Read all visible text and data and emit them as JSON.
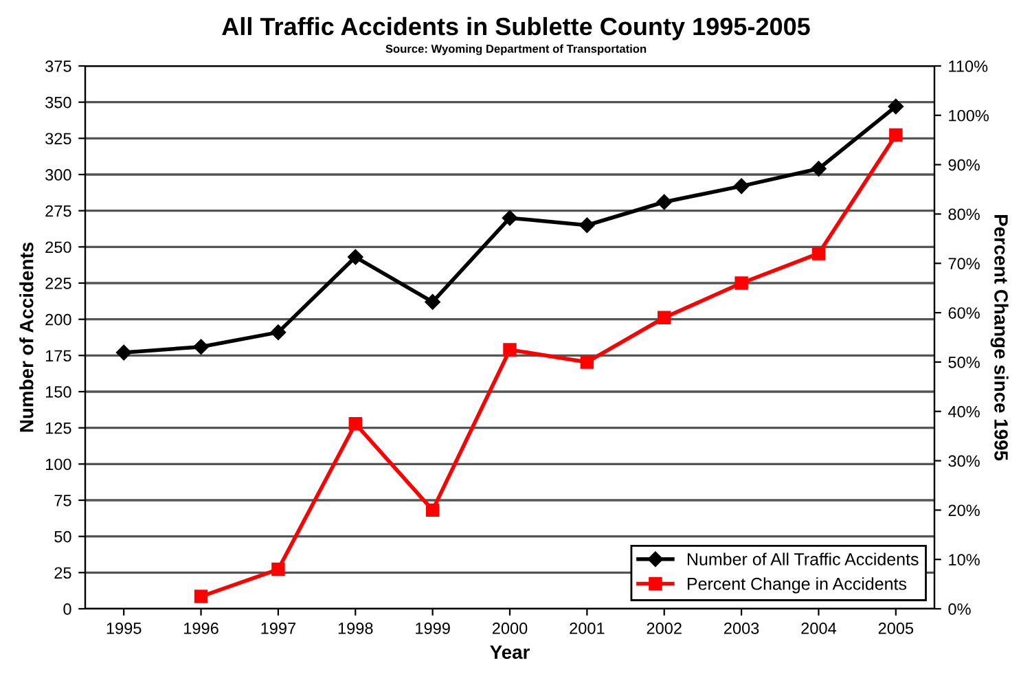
{
  "chart_data": {
    "type": "line",
    "title": "All Traffic Accidents in Sublette County 1995-2005",
    "annotations": [
      "Source: Wyoming Department of Transportation"
    ],
    "xlabel": "Year",
    "ylabel": "Number of Accidents",
    "y2label": "Percent Change since 1995",
    "categories": [
      "1995",
      "1996",
      "1997",
      "1998",
      "1999",
      "2000",
      "2001",
      "2002",
      "2003",
      "2004",
      "2005"
    ],
    "series": [
      {
        "name": "Number of All Traffic Accidents",
        "color": "#000000",
        "marker": "diamond",
        "values": [
          177,
          181,
          191,
          243,
          212,
          270,
          265,
          281,
          292,
          304,
          347
        ]
      },
      {
        "name": "Percent Change in Accidents",
        "color": "#ff0000",
        "marker": "square",
        "axis": "y2",
        "values": [
          null,
          2.5,
          8,
          37.5,
          20,
          52.5,
          50,
          59,
          66,
          72,
          96
        ]
      }
    ],
    "ylim": [
      0,
      375
    ],
    "yticks": [
      0,
      25,
      50,
      75,
      100,
      125,
      150,
      175,
      200,
      225,
      250,
      275,
      300,
      325,
      350,
      375
    ],
    "y2lim": [
      0,
      110
    ],
    "y2ticks": [
      {
        "value": 0,
        "label": "0%"
      },
      {
        "value": 10,
        "label": "10%"
      },
      {
        "value": 20,
        "label": "20%"
      },
      {
        "value": 30,
        "label": "30%"
      },
      {
        "value": 40,
        "label": "40%"
      },
      {
        "value": 50,
        "label": "50%"
      },
      {
        "value": 60,
        "label": "60%"
      },
      {
        "value": 70,
        "label": "70%"
      },
      {
        "value": 80,
        "label": "80%"
      },
      {
        "value": 90,
        "label": "90%"
      },
      {
        "value": 100,
        "label": "100%"
      },
      {
        "value": 110,
        "label": "110%"
      }
    ],
    "grid": "y",
    "legend": "bottom right",
    "line_style": "solid"
  }
}
